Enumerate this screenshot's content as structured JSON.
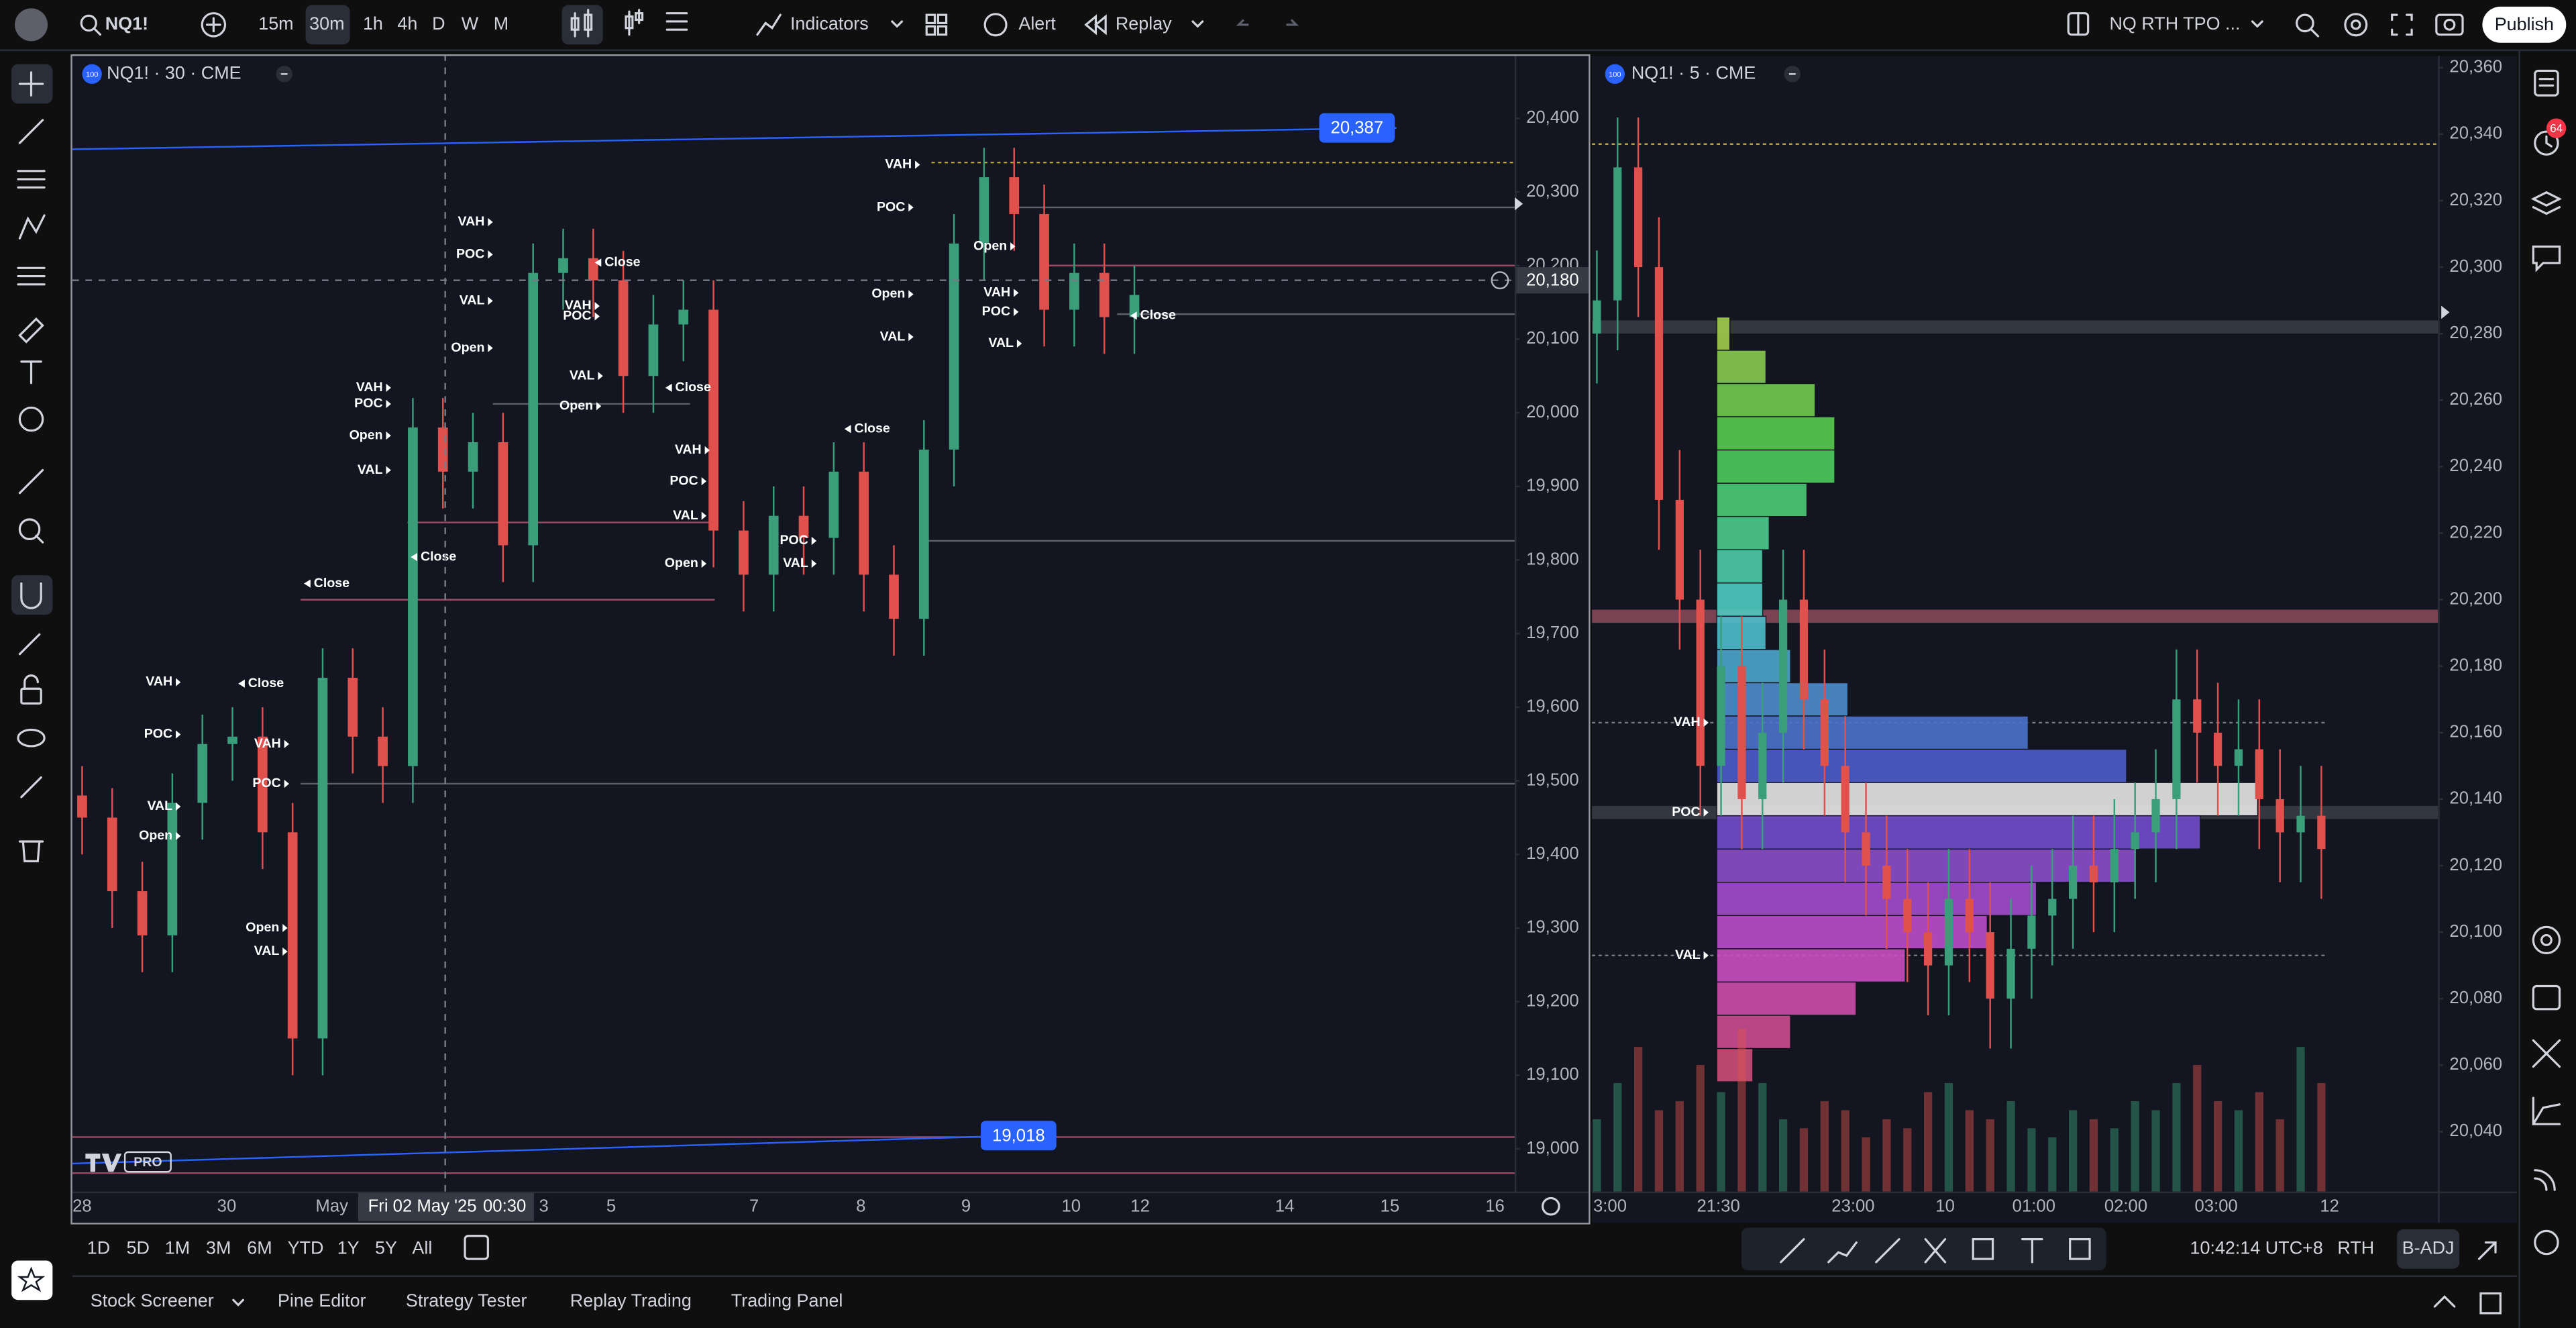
{
  "toolbar": {
    "symbol": "NQ1!",
    "intervals": [
      "15m",
      "30m",
      "1h",
      "4h",
      "D",
      "W",
      "M"
    ],
    "indicators": "Indicators",
    "alert": "Alert",
    "replay": "Replay",
    "layout": "NQ RTH TPO ...",
    "publish": "Publish",
    "notifications": "64"
  },
  "chart_data": [
    {
      "type": "candlestick",
      "title": "NQ1! · 30 · CME",
      "badge": "100",
      "logo": "PRO",
      "up_color": "#3a9e7a",
      "down_color": "#e0514e",
      "ylim": [
        18942,
        20487
      ],
      "yticks": [
        {
          "value": 20400,
          "label": "20,400"
        },
        {
          "value": 20300,
          "label": "20,300"
        },
        {
          "value": 20200,
          "label": "20,200"
        },
        {
          "value": 20100,
          "label": "20,100"
        },
        {
          "value": 20000,
          "label": "20,000"
        },
        {
          "value": 19900,
          "label": "19,900"
        },
        {
          "value": 19800,
          "label": "19,800"
        },
        {
          "value": 19700,
          "label": "19,700"
        },
        {
          "value": 19600,
          "label": "19,600"
        },
        {
          "value": 19500,
          "label": "19,500"
        },
        {
          "value": 19400,
          "label": "19,400"
        },
        {
          "value": 19300,
          "label": "19,300"
        },
        {
          "value": 19200,
          "label": "19,200"
        },
        {
          "value": 19100,
          "label": "19,100"
        },
        {
          "value": 19000,
          "label": "19,000"
        }
      ],
      "time_labels": [
        "28",
        "30",
        "May",
        "3",
        "5",
        "7",
        "8",
        "9",
        "10",
        "12",
        "14",
        "15",
        "16"
      ],
      "crosshair": {
        "date": "Fri 02 May '25",
        "time": "00:30",
        "price": {
          "value": 20180,
          "label": "20,180"
        }
      },
      "trendlines": [
        {
          "values": [
            20358,
            20387
          ],
          "color": "#2962ff",
          "label": {
            "value": 20387,
            "label": "20,387"
          }
        },
        {
          "values": [
            18980,
            19018
          ],
          "color": "#2962ff",
          "label": {
            "value": 19018,
            "label": "19,018"
          }
        }
      ],
      "levels": [
        {
          "value": 20340,
          "color": "#b8a23c",
          "style": "dotted"
        },
        {
          "value": 20279,
          "color": "#5d606b",
          "style": "solid"
        },
        {
          "value": 20200,
          "color": "#9c4a64",
          "style": "solid"
        },
        {
          "value": 20134,
          "color": "#5d606b",
          "style": "solid"
        },
        {
          "value": 20012,
          "color": "#5d606b",
          "style": "solid"
        },
        {
          "value": 19851,
          "color": "#9c4a64",
          "style": "solid"
        },
        {
          "value": 19826,
          "color": "#5d606b",
          "style": "solid"
        },
        {
          "value": 19746,
          "color": "#9c4a64",
          "style": "solid"
        },
        {
          "value": 19496,
          "color": "#5d606b",
          "style": "solid"
        },
        {
          "value": 19016,
          "color": "#9c4a64",
          "style": "solid"
        },
        {
          "value": 18967,
          "color": "#9c4a64",
          "style": "solid"
        }
      ],
      "candles": {
        "open": [
          19480,
          19450,
          19350,
          19290,
          19470,
          19550,
          19560,
          19430,
          19150,
          19640,
          19560,
          19520,
          19980,
          19920,
          19960,
          19820,
          20190,
          20210,
          20180,
          20050,
          20120,
          20140,
          19840,
          19780,
          19860,
          19830,
          19920,
          19780,
          19720,
          19950,
          20230,
          20320,
          20270,
          20140,
          20190,
          20130
        ],
        "high": [
          19520,
          19490,
          19390,
          19510,
          19590,
          19600,
          19600,
          19470,
          19680,
          19680,
          19600,
          20020,
          20020,
          20000,
          20000,
          20230,
          20250,
          20250,
          20220,
          20160,
          20180,
          20180,
          19880,
          19900,
          19900,
          19960,
          19960,
          19820,
          19990,
          20270,
          20360,
          20360,
          20310,
          20230,
          20230,
          20200
        ],
        "low": [
          19400,
          19300,
          19240,
          19240,
          19420,
          19500,
          19380,
          19100,
          19100,
          19510,
          19470,
          19470,
          19870,
          19870,
          19770,
          19770,
          20140,
          20130,
          20000,
          20000,
          20070,
          19790,
          19730,
          19730,
          19780,
          19780,
          19730,
          19670,
          19670,
          19900,
          20180,
          20220,
          20090,
          20090,
          20080,
          20080
        ],
        "close": [
          19450,
          19350,
          19290,
          19470,
          19550,
          19560,
          19430,
          19150,
          19640,
          19560,
          19520,
          19980,
          19920,
          19960,
          19820,
          20190,
          20210,
          20180,
          20050,
          20120,
          20140,
          19840,
          19780,
          19860,
          19830,
          19920,
          19780,
          19720,
          19950,
          20230,
          20320,
          20270,
          20140,
          20190,
          20130,
          20160
        ]
      },
      "tpo_labels": [
        {
          "text": "VAH",
          "value": 20337
        },
        {
          "text": "POC",
          "value": 20279
        },
        {
          "text": "Open",
          "value": 20226
        },
        {
          "text": "Open",
          "value": 20161
        },
        {
          "text": "VAH",
          "value": 20163
        },
        {
          "text": "POC",
          "value": 20137
        },
        {
          "text": "VAL",
          "value": 20103
        },
        {
          "text": "VAL",
          "value": 20094
        },
        {
          "text": "Close",
          "value": 20132
        },
        {
          "text": "VAH",
          "value": 20259
        },
        {
          "text": "POC",
          "value": 20215
        },
        {
          "text": "Close",
          "value": 20204
        },
        {
          "text": "VAL",
          "value": 20152
        },
        {
          "text": "Open",
          "value": 20088
        },
        {
          "text": "VAH",
          "value": 20145
        },
        {
          "text": "POC",
          "value": 20131
        },
        {
          "text": "VAL",
          "value": 20050
        },
        {
          "text": "Close",
          "value": 20034
        },
        {
          "text": "Open",
          "value": 20009
        },
        {
          "text": "VAH",
          "value": 20034
        },
        {
          "text": "POC",
          "value": 20012
        },
        {
          "text": "Open",
          "value": 19969
        },
        {
          "text": "VAL",
          "value": 19922
        },
        {
          "text": "Close",
          "value": 19804
        },
        {
          "text": "Close",
          "value": 19768
        },
        {
          "text": "VAH",
          "value": 19949
        },
        {
          "text": "POC",
          "value": 19907
        },
        {
          "text": "VAL",
          "value": 19860
        },
        {
          "text": "Open",
          "value": 19795
        },
        {
          "text": "Close",
          "value": 19978
        },
        {
          "text": "POC",
          "value": 19826
        },
        {
          "text": "VAL",
          "value": 19795
        },
        {
          "text": "VAH",
          "value": 19634
        },
        {
          "text": "POC",
          "value": 19563
        },
        {
          "text": "VAL",
          "value": 19465
        },
        {
          "text": "Open",
          "value": 19425
        },
        {
          "text": "VAH",
          "value": 19550
        },
        {
          "text": "POC",
          "value": 19496
        },
        {
          "text": "Open",
          "value": 19300
        },
        {
          "text": "VAL",
          "value": 19268
        },
        {
          "text": "Close",
          "value": 19632
        }
      ]
    },
    {
      "type": "candlestick",
      "title": "NQ1! · 5 · CME",
      "badge": "100",
      "up_color": "#3a9e7a",
      "down_color": "#e0514e",
      "ylim": [
        20022,
        20364
      ],
      "yticks": [
        {
          "value": 20360,
          "label": "20,360"
        },
        {
          "value": 20340,
          "label": "20,340"
        },
        {
          "value": 20320,
          "label": "20,320"
        },
        {
          "value": 20300,
          "label": "20,300"
        },
        {
          "value": 20280,
          "label": "20,280"
        },
        {
          "value": 20260,
          "label": "20,260"
        },
        {
          "value": 20240,
          "label": "20,240"
        },
        {
          "value": 20220,
          "label": "20,220"
        },
        {
          "value": 20200,
          "label": "20,200"
        },
        {
          "value": 20180,
          "label": "20,180"
        },
        {
          "value": 20160,
          "label": "20,160"
        },
        {
          "value": 20140,
          "label": "20,140"
        },
        {
          "value": 20120,
          "label": "20,120"
        },
        {
          "value": 20100,
          "label": "20,100"
        },
        {
          "value": 20080,
          "label": "20,080"
        },
        {
          "value": 20060,
          "label": "20,060"
        },
        {
          "value": 20040,
          "label": "20,040"
        }
      ],
      "time_labels": [
        "3:00",
        "21:30",
        "23:00",
        "10",
        "01:00",
        "02:00",
        "03:00",
        "12"
      ],
      "levels": [
        {
          "value": 20337,
          "color": "#b8a23c",
          "style": "dotted"
        },
        {
          "value": 20282,
          "color": "#3a3d47",
          "style": "band"
        },
        {
          "value": 20195,
          "color": "#8e4a5e",
          "style": "band"
        },
        {
          "value": 20136,
          "color": "#3a3d47",
          "style": "band"
        },
        {
          "value": 20163,
          "color": "#787b86",
          "style": "dotted"
        },
        {
          "value": 20093,
          "color": "#787b86",
          "style": "dotted"
        }
      ],
      "candles": {
        "open": [
          20280,
          20290,
          20330,
          20300,
          20230,
          20200,
          20150,
          20180,
          20140,
          20160,
          20200,
          20170,
          20150,
          20130,
          20120,
          20110,
          20100,
          20090,
          20110,
          20100,
          20080,
          20095,
          20105,
          20110,
          20120,
          20115,
          20125,
          20130,
          20140,
          20170,
          20160,
          20150,
          20155,
          20140,
          20130,
          20135
        ],
        "high": [
          20305,
          20345,
          20345,
          20315,
          20245,
          20215,
          20195,
          20195,
          20175,
          20215,
          20215,
          20185,
          20165,
          20145,
          20135,
          20125,
          20115,
          20125,
          20125,
          20115,
          20110,
          20120,
          20125,
          20135,
          20135,
          20140,
          20145,
          20155,
          20185,
          20185,
          20175,
          20170,
          20170,
          20155,
          20150,
          20150
        ],
        "low": [
          20265,
          20275,
          20285,
          20215,
          20185,
          20135,
          20135,
          20125,
          20125,
          20145,
          20155,
          20135,
          20115,
          20105,
          20095,
          20085,
          20075,
          20075,
          20085,
          20065,
          20065,
          20080,
          20090,
          20095,
          20100,
          20100,
          20110,
          20115,
          20125,
          20145,
          20135,
          20135,
          20125,
          20115,
          20115,
          20110
        ],
        "close": [
          20290,
          20330,
          20300,
          20230,
          20200,
          20150,
          20180,
          20140,
          20160,
          20200,
          20170,
          20150,
          20130,
          20120,
          20110,
          20100,
          20090,
          20110,
          20100,
          20080,
          20095,
          20105,
          20110,
          20120,
          20115,
          20125,
          20130,
          20140,
          20170,
          20160,
          20150,
          20155,
          20140,
          20130,
          20135,
          20125
        ]
      },
      "volume": [
        40,
        60,
        80,
        45,
        50,
        70,
        55,
        90,
        60,
        40,
        35,
        50,
        45,
        30,
        40,
        35,
        55,
        60,
        45,
        40,
        50,
        35,
        30,
        45,
        40,
        35,
        50,
        45,
        60,
        70,
        50,
        45,
        55,
        40,
        80,
        60
      ],
      "volume_ylim": [
        0,
        100
      ],
      "profile": {
        "prices": [
          20280,
          20270,
          20260,
          20250,
          20240,
          20230,
          20220,
          20210,
          20200,
          20190,
          20180,
          20170,
          20160,
          20150,
          20140,
          20130,
          20120,
          20110,
          20100,
          20090,
          20080,
          20070,
          20060
        ],
        "sizes": [
          8,
          30,
          60,
          72,
          72,
          55,
          32,
          28,
          28,
          30,
          45,
          80,
          190,
          250,
          330,
          295,
          255,
          195,
          165,
          115,
          85,
          45,
          22
        ],
        "xlim": [
          0,
          440
        ]
      },
      "tpo_labels": [
        {
          "text": "VAH",
          "value": 20163
        },
        {
          "text": "POC",
          "value": 20136
        },
        {
          "text": "VAL",
          "value": 20093
        }
      ]
    }
  ],
  "bottom_bar": {
    "ranges": [
      "1D",
      "5D",
      "1M",
      "3M",
      "6M",
      "YTD",
      "1Y",
      "5Y",
      "All"
    ],
    "clock": "10:42:14 UTC+8",
    "session": "RTH",
    "adjust": "B-ADJ"
  },
  "tabs": [
    "Stock Screener",
    "Pine Editor",
    "Strategy Tester",
    "Replay Trading",
    "Trading Panel"
  ]
}
